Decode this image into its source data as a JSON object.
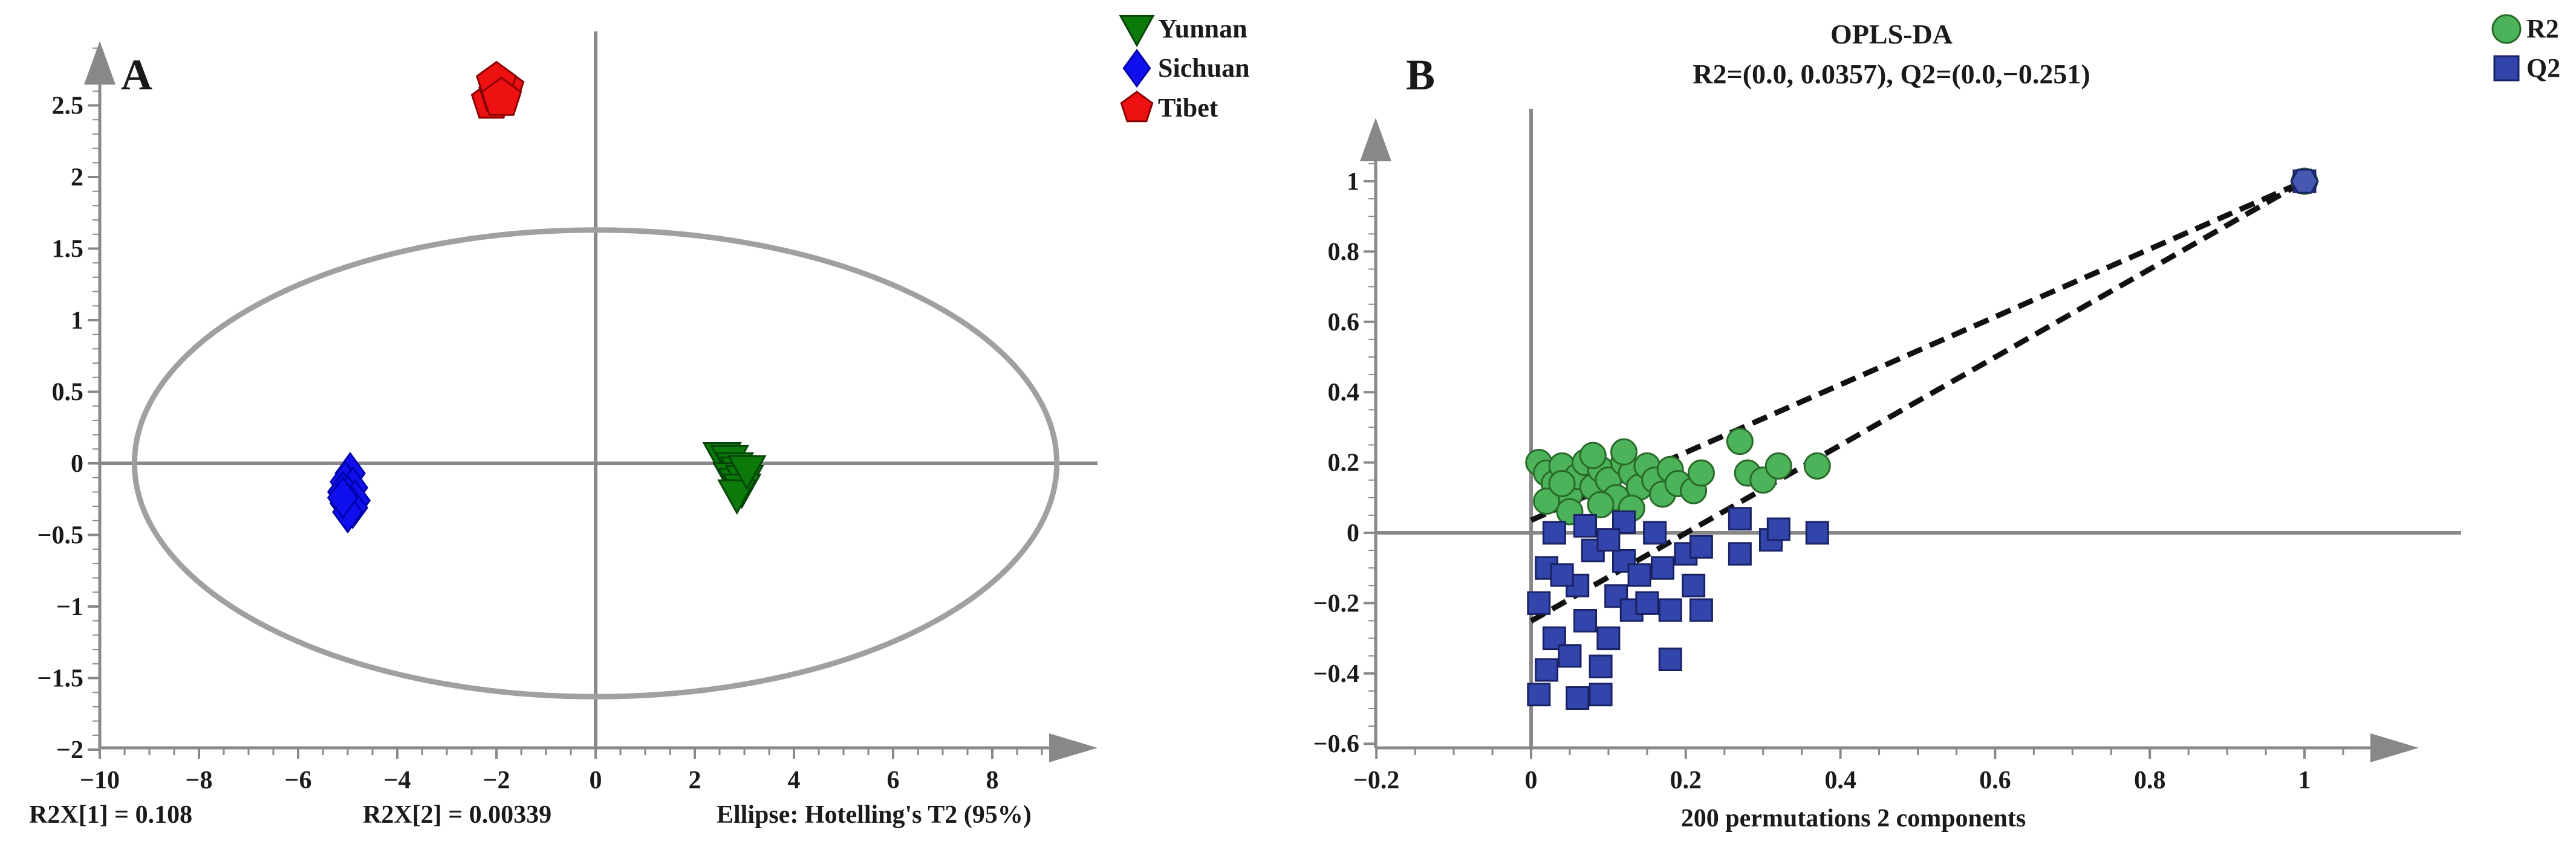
{
  "chart_data": [
    {
      "panel": "A",
      "type": "scatter",
      "xlim": [
        -10,
        10
      ],
      "ylim": [
        -2,
        3
      ],
      "xticks": [
        "−10",
        "−8",
        "−6",
        "−4",
        "−2",
        "0",
        "2",
        "4",
        "6",
        "8"
      ],
      "yticks": [
        "−2",
        "−1.5",
        "−1",
        "−0.5",
        "0",
        "0.5",
        "1",
        "1.5",
        "2",
        "2.5"
      ],
      "legend_position": "top-right (outside plot)",
      "ellipse": {
        "rx": 9.3,
        "ry": 1.63,
        "label": "Ellipse: Hotelling's T2 (95%)"
      },
      "footer": {
        "left": "R2X[1] = 0.108",
        "mid": "R2X[2] = 0.00339"
      },
      "series": [
        {
          "name": "Yunnan",
          "marker": "triangle-down",
          "color": "#0b7a0b",
          "points": [
            [
              2.55,
              0.04
            ],
            [
              2.7,
              0.02
            ],
            [
              2.8,
              -0.03
            ],
            [
              2.9,
              -0.06
            ],
            [
              2.75,
              -0.1
            ],
            [
              2.85,
              -0.14
            ],
            [
              3.0,
              -0.12
            ],
            [
              2.95,
              -0.18
            ],
            [
              2.85,
              -0.22
            ],
            [
              3.05,
              -0.05
            ]
          ]
        },
        {
          "name": "Sichuan",
          "marker": "diamond",
          "color": "#1010ee",
          "points": [
            [
              -4.95,
              -0.07
            ],
            [
              -5.05,
              -0.13
            ],
            [
              -4.9,
              -0.17
            ],
            [
              -5.1,
              -0.2
            ],
            [
              -5.0,
              -0.23
            ],
            [
              -4.85,
              -0.26
            ],
            [
              -5.05,
              -0.28
            ],
            [
              -4.9,
              -0.31
            ],
            [
              -5.0,
              -0.34
            ],
            [
              -5.1,
              -0.24
            ]
          ]
        },
        {
          "name": "Tibet",
          "marker": "pentagon",
          "color": "#ee1111",
          "points": [
            [
              -2.1,
              2.53
            ],
            [
              -1.95,
              2.58
            ],
            [
              -1.85,
              2.62
            ],
            [
              -2.0,
              2.66
            ],
            [
              -1.9,
              2.55
            ]
          ]
        }
      ]
    },
    {
      "panel": "B",
      "type": "scatter",
      "title": "OPLS-DA",
      "subtitle": "R2=(0.0, 0.0357), Q2=(0.0,−0.251)",
      "xlabel": "200 permutations 2 components",
      "xlim": [
        -0.2,
        1.1
      ],
      "ylim": [
        -0.6,
        1.1
      ],
      "xticks": [
        "−0.2",
        "0",
        "0.2",
        "0.4",
        "0.6",
        "0.8",
        "1"
      ],
      "yticks": [
        "−0.6",
        "−0.4",
        "−0.2",
        "0",
        "0.2",
        "0.4",
        "0.6",
        "0.8",
        "1"
      ],
      "legend_position": "top-right",
      "regression_lines": [
        {
          "name": "R2",
          "from": [
            0.0,
            0.0357
          ],
          "to": [
            1.0,
            1.0
          ]
        },
        {
          "name": "Q2",
          "from": [
            0.0,
            -0.251
          ],
          "to": [
            1.0,
            1.0
          ]
        }
      ],
      "series": [
        {
          "name": "R2",
          "marker": "circle",
          "color": "#4cb35a",
          "points": [
            [
              1.0,
              1.0
            ],
            [
              0.01,
              0.2
            ],
            [
              0.02,
              0.17
            ],
            [
              0.03,
              0.14
            ],
            [
              0.04,
              0.19
            ],
            [
              0.05,
              0.11
            ],
            [
              0.06,
              0.16
            ],
            [
              0.07,
              0.2
            ],
            [
              0.08,
              0.13
            ],
            [
              0.09,
              0.18
            ],
            [
              0.1,
              0.15
            ],
            [
              0.11,
              0.1
            ],
            [
              0.12,
              0.2
            ],
            [
              0.13,
              0.17
            ],
            [
              0.14,
              0.13
            ],
            [
              0.15,
              0.19
            ],
            [
              0.16,
              0.15
            ],
            [
              0.17,
              0.11
            ],
            [
              0.18,
              0.18
            ],
            [
              0.19,
              0.14
            ],
            [
              0.21,
              0.12
            ],
            [
              0.22,
              0.17
            ],
            [
              0.27,
              0.26
            ],
            [
              0.28,
              0.17
            ],
            [
              0.3,
              0.15
            ],
            [
              0.32,
              0.19
            ],
            [
              0.37,
              0.19
            ],
            [
              0.02,
              0.09
            ],
            [
              0.05,
              0.06
            ],
            [
              0.09,
              0.08
            ],
            [
              0.13,
              0.07
            ],
            [
              0.04,
              0.14
            ],
            [
              0.08,
              0.22
            ],
            [
              0.12,
              0.23
            ]
          ]
        },
        {
          "name": "Q2",
          "marker": "square",
          "color": "#3344aa",
          "points": [
            [
              1.0,
              1.0
            ],
            [
              0.01,
              -0.46
            ],
            [
              0.02,
              -0.39
            ],
            [
              0.03,
              -0.3
            ],
            [
              0.01,
              -0.2
            ],
            [
              0.02,
              -0.1
            ],
            [
              0.03,
              0.0
            ],
            [
              0.05,
              -0.35
            ],
            [
              0.06,
              -0.47
            ],
            [
              0.07,
              -0.25
            ],
            [
              0.06,
              -0.15
            ],
            [
              0.08,
              -0.05
            ],
            [
              0.07,
              0.02
            ],
            [
              0.09,
              -0.46
            ],
            [
              0.1,
              -0.3
            ],
            [
              0.11,
              -0.18
            ],
            [
              0.12,
              -0.08
            ],
            [
              0.13,
              -0.22
            ],
            [
              0.12,
              0.03
            ],
            [
              0.14,
              -0.12
            ],
            [
              0.15,
              -0.2
            ],
            [
              0.16,
              0.0
            ],
            [
              0.17,
              -0.1
            ],
            [
              0.18,
              -0.36
            ],
            [
              0.18,
              -0.22
            ],
            [
              0.2,
              -0.06
            ],
            [
              0.21,
              -0.15
            ],
            [
              0.22,
              -0.22
            ],
            [
              0.22,
              -0.04
            ],
            [
              0.27,
              0.04
            ],
            [
              0.27,
              -0.06
            ],
            [
              0.31,
              -0.02
            ],
            [
              0.32,
              0.01
            ],
            [
              0.37,
              0.0
            ],
            [
              0.04,
              -0.12
            ],
            [
              0.09,
              -0.38
            ],
            [
              0.1,
              -0.02
            ]
          ]
        }
      ]
    }
  ]
}
